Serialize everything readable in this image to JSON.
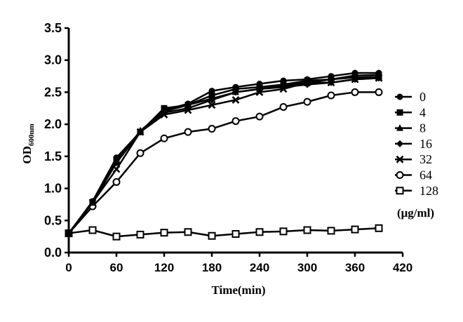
{
  "chart_data": {
    "type": "line",
    "xlabel": "Time(min)",
    "ylabel_main": "OD",
    "ylabel_sub": "600nm",
    "xlim": [
      0,
      420
    ],
    "ylim": [
      0.0,
      3.5
    ],
    "xticks": [
      0,
      60,
      120,
      180,
      240,
      300,
      360,
      420
    ],
    "xtick_labels": [
      "0",
      "60",
      "120",
      "180",
      "240",
      "300",
      "360",
      "420"
    ],
    "yticks": [
      0.0,
      0.5,
      1.0,
      1.5,
      2.0,
      2.5,
      3.0,
      3.5
    ],
    "ytick_labels": [
      "0.0",
      "0.5",
      "1.0",
      "1.5",
      "2.0",
      "2.5",
      "3.0",
      "3.5"
    ],
    "legend_unit": "(μg/ml)",
    "legend_position": "right",
    "grid": false,
    "x": [
      0,
      30,
      60,
      90,
      120,
      150,
      180,
      210,
      240,
      270,
      300,
      330,
      360,
      390
    ],
    "series": [
      {
        "name": "0",
        "marker": "filled-circle",
        "values": [
          0.3,
          0.8,
          1.48,
          1.88,
          2.22,
          2.32,
          2.52,
          2.58,
          2.63,
          2.68,
          2.7,
          2.75,
          2.8,
          2.8
        ]
      },
      {
        "name": "4",
        "marker": "filled-square",
        "values": [
          0.3,
          0.78,
          1.45,
          1.88,
          2.25,
          2.3,
          2.45,
          2.55,
          2.58,
          2.62,
          2.68,
          2.7,
          2.76,
          2.77
        ]
      },
      {
        "name": "8",
        "marker": "filled-triangle",
        "values": [
          0.3,
          0.78,
          1.4,
          1.9,
          2.2,
          2.3,
          2.4,
          2.5,
          2.55,
          2.6,
          2.65,
          2.7,
          2.73,
          2.74
        ]
      },
      {
        "name": "16",
        "marker": "diamond",
        "values": [
          0.3,
          0.78,
          1.4,
          1.88,
          2.18,
          2.25,
          2.38,
          2.5,
          2.55,
          2.58,
          2.62,
          2.65,
          2.7,
          2.72
        ]
      },
      {
        "name": "32",
        "marker": "x",
        "values": [
          0.3,
          0.78,
          1.3,
          1.88,
          2.15,
          2.22,
          2.3,
          2.38,
          2.5,
          2.55,
          2.65,
          2.65,
          2.7,
          2.72
        ]
      },
      {
        "name": "64",
        "marker": "open-circle",
        "values": [
          0.3,
          0.72,
          1.1,
          1.55,
          1.78,
          1.88,
          1.93,
          2.05,
          2.12,
          2.27,
          2.35,
          2.45,
          2.5,
          2.5
        ]
      },
      {
        "name": "128",
        "marker": "open-square",
        "values": [
          0.3,
          0.35,
          0.25,
          0.28,
          0.31,
          0.32,
          0.26,
          0.29,
          0.32,
          0.33,
          0.35,
          0.34,
          0.36,
          0.38
        ]
      }
    ]
  }
}
